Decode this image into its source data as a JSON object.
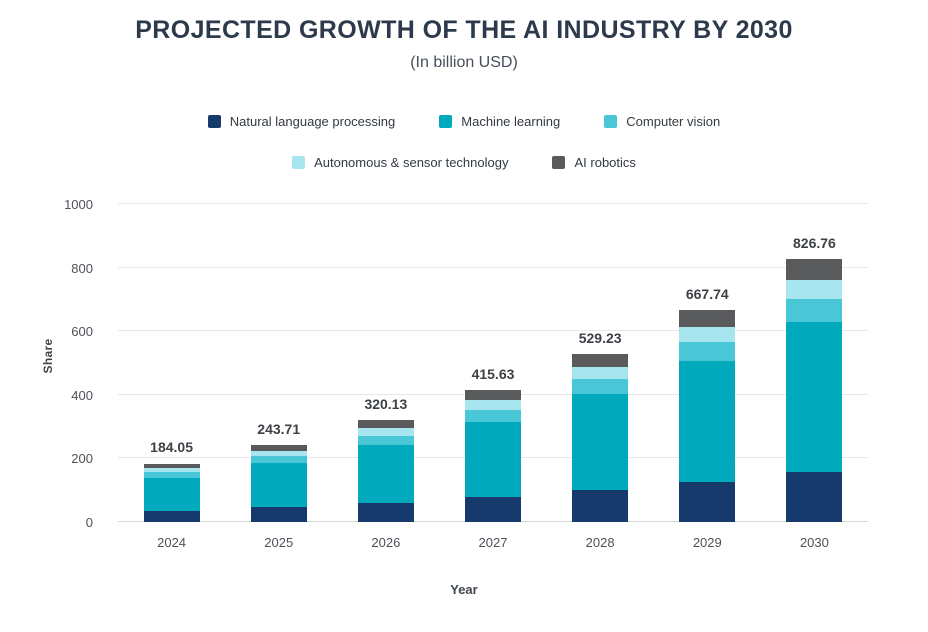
{
  "chart_data": {
    "type": "bar",
    "stacked": true,
    "title": "PROJECTED GROWTH OF THE AI INDUSTRY BY 2030",
    "subtitle": "(In billion USD)",
    "xlabel": "Year",
    "ylabel": "Share",
    "ylim": [
      0,
      1000
    ],
    "yticks": [
      0,
      200,
      400,
      600,
      800,
      1000
    ],
    "grid": "horizontal",
    "legend_position": "top",
    "categories": [
      "2024",
      "2025",
      "2026",
      "2027",
      "2028",
      "2029",
      "2030"
    ],
    "totals": [
      184.05,
      243.71,
      320.13,
      415.63,
      529.23,
      667.74,
      826.76
    ],
    "total_labels": [
      "184.05",
      "243.71",
      "320.13",
      "415.63",
      "529.23",
      "667.74",
      "826.76"
    ],
    "series": [
      {
        "name": "Natural language processing",
        "color": "#173a6d",
        "values": [
          34.97,
          46.3,
          60.82,
          78.97,
          100.55,
          126.87,
          157.08
        ]
      },
      {
        "name": "Machine learning",
        "color": "#00a9bc",
        "values": [
          104.91,
          138.91,
          182.47,
          236.91,
          301.66,
          380.61,
          471.25
        ]
      },
      {
        "name": "Computer vision",
        "color": "#4ac7d7",
        "values": [
          16.56,
          21.93,
          28.81,
          37.41,
          47.63,
          60.1,
          74.41
        ]
      },
      {
        "name": "Autonomous & sensor technology",
        "color": "#a8e6ef",
        "values": [
          12.88,
          17.06,
          22.41,
          29.09,
          37.05,
          46.74,
          57.87
        ]
      },
      {
        "name": "AI robotics",
        "color": "#595a5c",
        "values": [
          14.73,
          19.51,
          25.62,
          33.25,
          42.34,
          53.42,
          66.15
        ]
      }
    ],
    "legend_rows": [
      [
        0,
        1,
        2
      ],
      [
        3,
        4
      ]
    ]
  }
}
